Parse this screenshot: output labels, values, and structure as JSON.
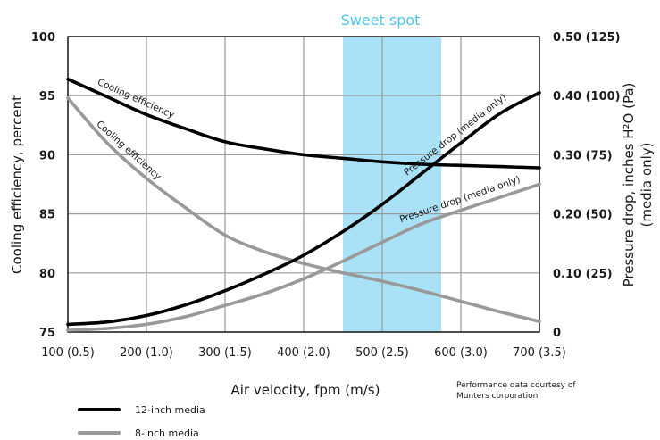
{
  "chart_data": {
    "type": "line",
    "band_label": "Sweet spot",
    "band_range": [
      450,
      575
    ],
    "xlabel": "Air velocity, fpm (m/s)",
    "ylabel_left": "Cooling efficiency, percent",
    "ylabel_right_line1": "Pressure drop, inches H²O (Pa)",
    "ylabel_right_line2": "(media only)",
    "xlim": [
      100,
      700
    ],
    "ylim_left": [
      75,
      100
    ],
    "ylim_right": [
      0,
      0.5
    ],
    "x_ticks": [
      {
        "value": 100,
        "label": "100 (0.5)"
      },
      {
        "value": 200,
        "label": "200 (1.0)"
      },
      {
        "value": 300,
        "label": "300 (1.5)"
      },
      {
        "value": 400,
        "label": "400 (2.0)"
      },
      {
        "value": 500,
        "label": "500 (2.5)"
      },
      {
        "value": 600,
        "label": "600 (3.0)"
      },
      {
        "value": 700,
        "label": "700 (3.5)"
      }
    ],
    "y_left_ticks": [
      {
        "value": 75,
        "label": "75"
      },
      {
        "value": 80,
        "label": "80"
      },
      {
        "value": 85,
        "label": "85"
      },
      {
        "value": 90,
        "label": "90"
      },
      {
        "value": 95,
        "label": "95"
      },
      {
        "value": 100,
        "label": "100"
      }
    ],
    "y_right_ticks": [
      {
        "value": 0,
        "label": "0"
      },
      {
        "value": 0.1,
        "label": "0.10 (25)"
      },
      {
        "value": 0.2,
        "label": "0.20 (50)"
      },
      {
        "value": 0.3,
        "label": "0.30 (75)"
      },
      {
        "value": 0.4,
        "label": "0.40 (100)"
      },
      {
        "value": 0.5,
        "label": "0.50 (125)"
      }
    ],
    "series": [
      {
        "name": "12-inch media",
        "label": "Cooling efficiency",
        "axis": "left",
        "color": "#000000",
        "x": [
          100,
          150,
          200,
          250,
          300,
          350,
          400,
          450,
          500,
          550,
          600,
          650,
          700
        ],
        "y": [
          96.4,
          94.9,
          93.4,
          92.2,
          91.1,
          90.5,
          90.0,
          89.7,
          89.4,
          89.2,
          89.1,
          89.0,
          88.9
        ]
      },
      {
        "name": "8-inch media",
        "label": "Cooling efficiency",
        "axis": "left",
        "color": "#999999",
        "x": [
          100,
          150,
          200,
          250,
          300,
          350,
          400,
          450,
          500,
          550,
          600,
          650,
          700
        ],
        "y": [
          94.8,
          91.0,
          88.0,
          85.5,
          83.2,
          81.8,
          80.8,
          80.0,
          79.3,
          78.5,
          77.6,
          76.7,
          75.9
        ]
      },
      {
        "name": "12-inch media",
        "label": "Pressure drop (media only)",
        "axis": "right",
        "color": "#000000",
        "x": [
          100,
          150,
          200,
          250,
          300,
          350,
          400,
          450,
          500,
          550,
          600,
          650,
          700
        ],
        "y": [
          0.013,
          0.017,
          0.028,
          0.046,
          0.07,
          0.098,
          0.13,
          0.17,
          0.216,
          0.268,
          0.32,
          0.37,
          0.405
        ]
      },
      {
        "name": "8-inch media",
        "label": "Pressure drop (media only)",
        "axis": "right",
        "color": "#999999",
        "x": [
          100,
          150,
          200,
          250,
          300,
          350,
          400,
          450,
          500,
          550,
          600,
          650,
          700
        ],
        "y": [
          0.003,
          0.006,
          0.013,
          0.026,
          0.045,
          0.065,
          0.09,
          0.12,
          0.152,
          0.183,
          0.206,
          0.228,
          0.25
        ]
      }
    ],
    "legend": [
      {
        "label": "12-inch media",
        "color": "#000000"
      },
      {
        "label": "8-inch media",
        "color": "#999999"
      }
    ],
    "legend_position": "bottom-left",
    "grid": true,
    "band_color": "#a9e2f7",
    "credit_line1": "Performance data courtesy of",
    "credit_line2": "Munters corporation"
  }
}
